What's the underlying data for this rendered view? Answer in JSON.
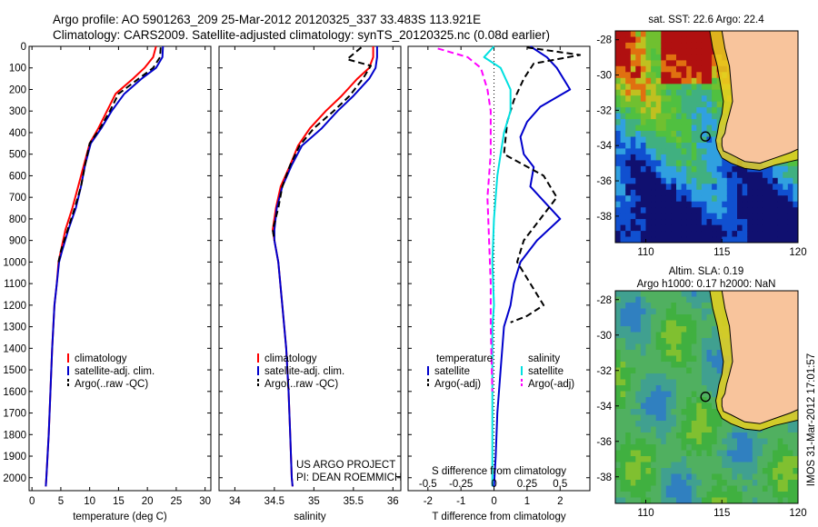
{
  "header": {
    "line1": "Argo profile: AO 5901263_209 25-Mar-2012 20120325_337 33.483S 113.921E",
    "line2": "Climatology: CARS2009. Satellite-adjusted climatology: synTS_20120325.nc (0.08d earlier)"
  },
  "side_stamp": "IMOS 31-Mar-2012 17:01:57",
  "project": {
    "line1": "US ARGO PROJECT",
    "line2": "PI: DEAN ROEMMICH"
  },
  "colors": {
    "climatology": "#ff0000",
    "satellite": "#0000cc",
    "argo": "#000000",
    "diff_temp_sat": "#0000cc",
    "diff_sal_sat": "#00e0e0",
    "diff_sal_argo": "#ff00ff",
    "land": "#f8c49c"
  },
  "chart_data": [
    {
      "id": "temperature",
      "type": "line",
      "xlabel": "temperature (deg C)",
      "xlim": [
        -0.5,
        31
      ],
      "xticks": [
        0,
        5,
        10,
        15,
        20,
        25,
        30
      ],
      "ylim": [
        0,
        2060
      ],
      "yticks": [
        0,
        100,
        200,
        300,
        400,
        500,
        600,
        700,
        800,
        900,
        1000,
        1100,
        1200,
        1300,
        1400,
        1500,
        1600,
        1700,
        1800,
        1900,
        2000
      ],
      "y_inverted": true,
      "legend": {
        "placement": "lower-center",
        "entries": [
          "climatology",
          "satellite-adj. clim.",
          "Argo(..raw -QC)"
        ]
      },
      "series": [
        {
          "name": "climatology",
          "color": "#ff0000",
          "dash": "solid",
          "x": [
            21.5,
            21.0,
            19.5,
            17.5,
            14.5,
            13.0,
            11.5,
            10.0,
            9.0,
            8.0,
            7.0,
            5.8,
            5.0,
            4.6,
            4.3,
            3.9,
            3.5,
            3.2,
            2.9,
            2.7,
            2.5,
            2.4
          ],
          "y": [
            0,
            50,
            100,
            150,
            220,
            300,
            380,
            450,
            550,
            650,
            750,
            850,
            950,
            1000,
            1100,
            1200,
            1400,
            1600,
            1800,
            1900,
            2000,
            2040
          ]
        },
        {
          "name": "satellite-adj. clim.",
          "color": "#0000cc",
          "dash": "solid",
          "x": [
            22.7,
            22.6,
            21.5,
            19.0,
            16.0,
            13.8,
            12.0,
            10.2,
            9.2,
            8.5,
            7.6,
            6.3,
            5.2,
            4.7,
            4.3,
            3.9,
            3.5,
            3.2,
            2.9,
            2.7,
            2.5,
            2.4
          ],
          "y": [
            0,
            50,
            100,
            150,
            220,
            300,
            380,
            450,
            550,
            650,
            750,
            850,
            950,
            1000,
            1100,
            1200,
            1400,
            1600,
            1800,
            1900,
            2000,
            2040
          ]
        },
        {
          "name": "Argo(..raw -QC)",
          "color": "#000000",
          "dash": "dashed",
          "x": [
            22.3,
            22.2,
            21.0,
            18.5,
            15.0,
            13.5,
            11.8,
            10.0,
            9.2,
            8.5,
            7.4,
            6.2,
            5.0,
            4.6
          ],
          "y": [
            5,
            50,
            100,
            150,
            220,
            300,
            380,
            450,
            550,
            650,
            750,
            850,
            950,
            1000
          ]
        }
      ]
    },
    {
      "id": "salinity",
      "type": "line",
      "xlabel": "salinity",
      "xlim": [
        33.8,
        36.1
      ],
      "xticks": [
        34,
        34.5,
        35,
        35.5,
        36
      ],
      "ylim": [
        0,
        2060
      ],
      "y_inverted": true,
      "legend": {
        "placement": "lower-center",
        "entries": [
          "climatology",
          "satellite-adj. clim.",
          "Argo(..raw -QC)"
        ]
      },
      "series": [
        {
          "name": "climatology",
          "color": "#ff0000",
          "dash": "solid",
          "x": [
            35.75,
            35.75,
            35.7,
            35.55,
            35.35,
            35.15,
            34.95,
            34.8,
            34.7,
            34.58,
            34.52,
            34.48,
            34.5,
            34.55,
            34.6,
            34.65,
            34.68,
            34.7,
            34.72,
            34.73
          ],
          "y": [
            0,
            50,
            100,
            150,
            230,
            300,
            380,
            460,
            550,
            650,
            750,
            850,
            900,
            1000,
            1200,
            1400,
            1600,
            1800,
            2000,
            2040
          ]
        },
        {
          "name": "satellite-adj. clim.",
          "color": "#0000cc",
          "dash": "solid",
          "x": [
            35.8,
            35.8,
            35.78,
            35.7,
            35.5,
            35.3,
            35.1,
            34.85,
            34.72,
            34.6,
            34.53,
            34.5,
            34.5,
            34.55,
            34.6,
            34.65,
            34.68,
            34.7,
            34.72,
            34.73
          ],
          "y": [
            0,
            50,
            100,
            150,
            230,
            300,
            380,
            460,
            550,
            650,
            750,
            850,
            900,
            1000,
            1200,
            1400,
            1600,
            1800,
            2000,
            2040
          ]
        },
        {
          "name": "Argo(..raw -QC)",
          "color": "#000000",
          "dash": "dashed",
          "x": [
            35.6,
            35.42,
            35.72,
            35.62,
            35.45,
            35.25,
            35.0,
            34.82,
            34.7,
            34.6,
            34.55,
            34.48,
            34.5
          ],
          "y": [
            5,
            60,
            90,
            150,
            230,
            300,
            380,
            460,
            550,
            650,
            750,
            850,
            900
          ]
        }
      ]
    },
    {
      "id": "differences",
      "type": "line",
      "xlabel": "T difference from climatology",
      "xlim": [
        -2.6,
        2.9
      ],
      "xticks": [
        -2,
        -1,
        0,
        1,
        2
      ],
      "x2label": "S difference from climatology",
      "x2ticks": [
        "-0.5",
        "-0.25",
        "0",
        "0.25",
        "0.5"
      ],
      "ylim": [
        0,
        2060
      ],
      "y_inverted": true,
      "legend": {
        "placement": "lower-center",
        "headers": [
          "temperature",
          "salinity"
        ],
        "entries": [
          "satellite",
          "Argo(-adj)",
          "satellite",
          "Argo(-adj)"
        ]
      },
      "series": [
        {
          "name": "temperature satellite",
          "color": "#0000cc",
          "dash": "solid",
          "x": [
            1.1,
            1.6,
            1.9,
            2.3,
            1.4,
            1.0,
            0.8,
            0.9,
            1.2,
            1.1,
            2.0,
            1.3,
            0.8,
            0.6,
            0.5,
            0.3,
            0.2,
            0.1,
            0.05,
            0.0
          ],
          "y": [
            0,
            50,
            100,
            200,
            280,
            350,
            420,
            500,
            560,
            650,
            800,
            900,
            1000,
            1100,
            1200,
            1300,
            1500,
            1700,
            1900,
            2040
          ]
        },
        {
          "name": "temperature Argo(-adj)",
          "color": "#000000",
          "dash": "dashed",
          "x": [
            1.0,
            2.6,
            1.2,
            0.9,
            0.6,
            0.4,
            0.3,
            1.5,
            1.9,
            1.4,
            0.9,
            0.7,
            1.1,
            1.5,
            1.0,
            0.5
          ],
          "y": [
            5,
            40,
            80,
            150,
            250,
            350,
            500,
            600,
            700,
            800,
            900,
            1000,
            1100,
            1200,
            1250,
            1280
          ]
        },
        {
          "name": "salinity satellite",
          "color": "#00e0e0",
          "dash": "solid",
          "x": [
            0.0,
            -0.3,
            0.2,
            0.5,
            0.5,
            0.3,
            0.2,
            0.1,
            0.0,
            -0.05,
            0.0,
            -0.05,
            -0.05,
            -0.05,
            -0.05,
            -0.05
          ],
          "y": [
            0,
            50,
            100,
            200,
            300,
            400,
            500,
            600,
            800,
            1000,
            1200,
            1300,
            1400,
            1600,
            1800,
            2040
          ]
        },
        {
          "name": "salinity Argo(-adj)",
          "color": "#ff00ff",
          "dash": "dashed",
          "x": [
            -1.7,
            -0.8,
            -0.4,
            -0.2,
            -0.1,
            -0.1,
            -0.2,
            -0.15,
            -0.1,
            -0.1,
            -0.05
          ],
          "y": [
            10,
            50,
            100,
            200,
            300,
            500,
            700,
            900,
            1100,
            1300,
            1600
          ]
        }
      ]
    },
    {
      "id": "map-sst",
      "type": "heatmap",
      "title": "sat. SST: 22.6 Argo: 22.4",
      "xlim": [
        108,
        120
      ],
      "ylim": [
        -39.5,
        -27.5
      ],
      "xticks": [
        110,
        115,
        120
      ],
      "yticks": [
        -28,
        -30,
        -32,
        -34,
        -36,
        -38
      ],
      "marker": {
        "lon": 113.921,
        "lat": -33.483
      }
    },
    {
      "id": "map-sla",
      "type": "heatmap",
      "title_line1": "Altim. SLA: 0.19",
      "title_line2": "Argo h1000: 0.17 h2000: NaN",
      "xlim": [
        108,
        120
      ],
      "ylim": [
        -39.5,
        -27.5
      ],
      "xticks": [
        110,
        115,
        120
      ],
      "yticks": [
        -28,
        -30,
        -32,
        -34,
        -36,
        -38
      ],
      "marker": {
        "lon": 113.921,
        "lat": -33.483
      }
    }
  ]
}
